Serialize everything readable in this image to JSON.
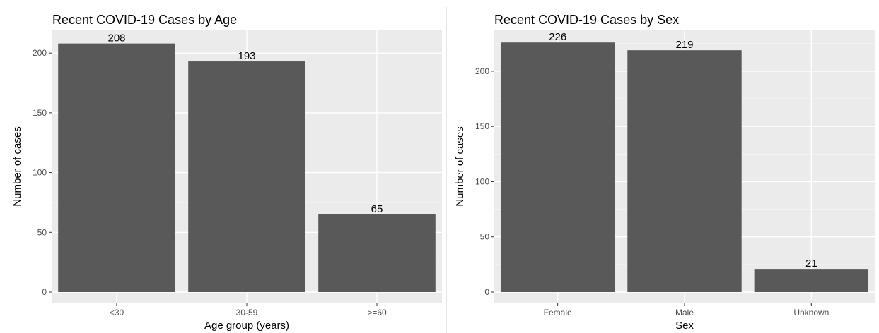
{
  "chart_data": [
    {
      "type": "bar",
      "title": "Recent COVID-19 Cases by Age",
      "xlabel": "Age group (years)",
      "ylabel": "Number of cases",
      "categories": [
        "<30",
        "30-59",
        ">=60"
      ],
      "values": [
        208,
        193,
        65
      ],
      "data_labels": [
        "208",
        "193",
        "65"
      ],
      "ylim": [
        0,
        219
      ],
      "yticks": [
        0,
        50,
        100,
        150,
        200
      ],
      "grid": true,
      "bar_color": "#595959",
      "panel_bg": "#ebebeb"
    },
    {
      "type": "bar",
      "title": "Recent COVID-19 Cases by Sex",
      "xlabel": "Sex",
      "ylabel": "Number of cases",
      "categories": [
        "Female",
        "Male",
        "Unknown"
      ],
      "values": [
        226,
        219,
        21
      ],
      "data_labels": [
        "226",
        "219",
        "21"
      ],
      "ylim": [
        0,
        237
      ],
      "yticks": [
        0,
        50,
        100,
        150,
        200
      ],
      "grid": true,
      "bar_color": "#595959",
      "panel_bg": "#ebebeb"
    }
  ]
}
